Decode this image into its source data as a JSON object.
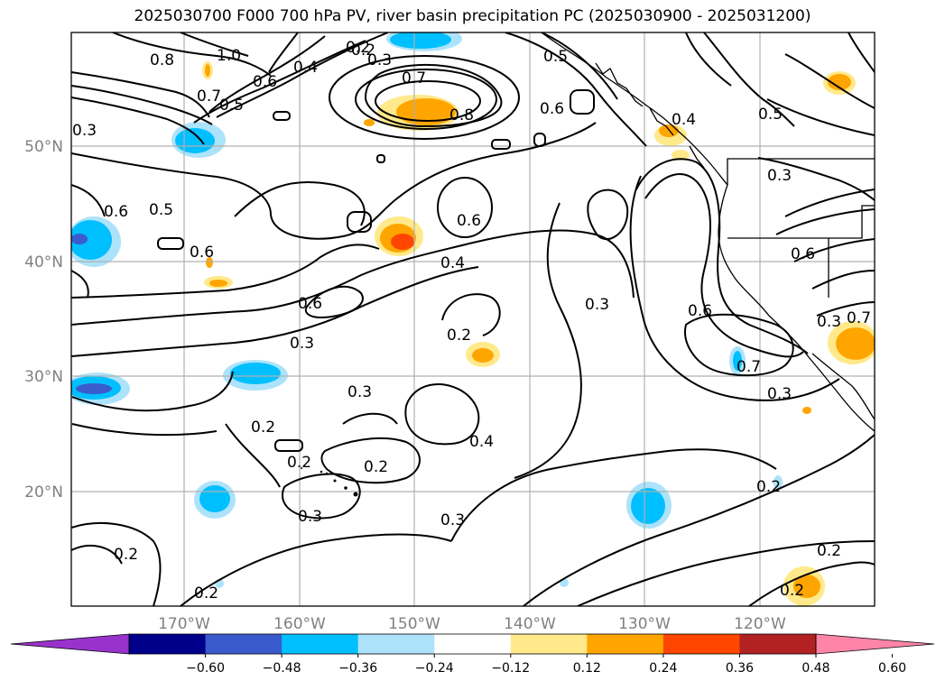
{
  "title": "2025030700 F000 700 hPa PV, river basin precipitation PC (2025030900 - 2025031200)",
  "map": {
    "lon_ticks": [
      "170°W",
      "160°W",
      "150°W",
      "140°W",
      "130°W",
      "120°W"
    ],
    "lat_ticks": [
      "50°N",
      "40°N",
      "30°N",
      "20°N"
    ],
    "grid": true
  },
  "contour_labels": [
    "0.8",
    "1.0",
    "0.6",
    "0.7",
    "0.5",
    "0.4",
    "0.3",
    "0.2",
    "0.8",
    "0.3",
    "0.7",
    "0.6",
    "0.5",
    "0.6",
    "0.6",
    "0.4",
    "0.2",
    "0.6",
    "0.3",
    "0.5",
    "0.6",
    "0.6",
    "0.3",
    "0.6",
    "0.3",
    "0.3",
    "0.2",
    "0.4",
    "0.2",
    "0.2",
    "0.2",
    "0.3",
    "0.3",
    "0.2",
    "0.3",
    "0.3",
    "0.7",
    "0.2",
    "0.2",
    "0.2",
    "0.7",
    "0.2",
    "0.5",
    "0.4"
  ],
  "colorbar": {
    "ticks": [
      "−0.60",
      "−0.48",
      "−0.36",
      "−0.24",
      "−0.12",
      "0.12",
      "0.24",
      "0.36",
      "0.48",
      "0.60"
    ],
    "colors": [
      "#9932CC",
      "#00008B",
      "#3A5BCC",
      "#00BFFF",
      "#ADE3FA",
      "#FFFFFF",
      "#FFE98A",
      "#FFA500",
      "#FF4500",
      "#B22222",
      "#FF85A8"
    ],
    "extend": "both"
  }
}
